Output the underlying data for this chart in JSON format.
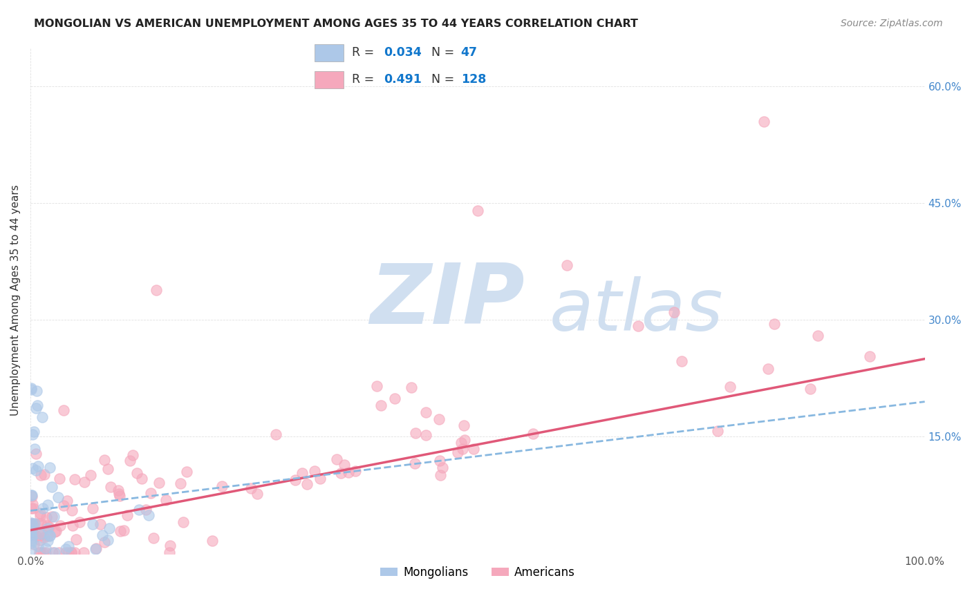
{
  "title": "MONGOLIAN VS AMERICAN UNEMPLOYMENT AMONG AGES 35 TO 44 YEARS CORRELATION CHART",
  "source": "Source: ZipAtlas.com",
  "ylabel": "Unemployment Among Ages 35 to 44 years",
  "xlim": [
    0,
    1.0
  ],
  "ylim": [
    0,
    0.65
  ],
  "mongolian_R": 0.034,
  "mongolian_N": 47,
  "american_R": 0.491,
  "american_N": 128,
  "mongolian_color": "#adc8e8",
  "american_color": "#f5a8bc",
  "mongolian_line_color": "#88b8e0",
  "american_line_color": "#e05878",
  "watermark_zip": "ZIP",
  "watermark_atlas": "atlas",
  "watermark_color": "#d0dff0",
  "background_color": "#ffffff",
  "grid_color": "#cccccc",
  "title_color": "#222222",
  "ylabel_color": "#333333",
  "ytick_color": "#4488cc",
  "xtick_color": "#555555",
  "source_color": "#888888",
  "legend_border_color": "#aaaaaa"
}
